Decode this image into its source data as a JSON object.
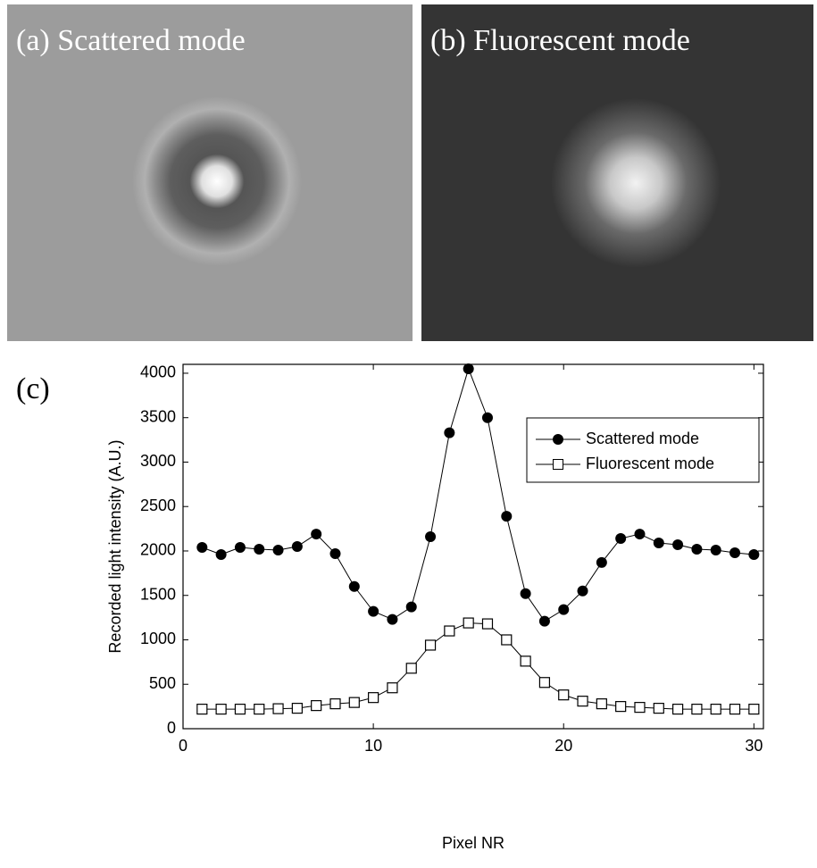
{
  "panels": [
    {
      "label": "(a) Scattered mode"
    },
    {
      "label": "(b) Fluorescent mode"
    }
  ],
  "chart_data": {
    "type": "line",
    "panel_label": "(c)",
    "x_label": "Pixel NR",
    "y_label": "Recorded light intensity (A.U.)",
    "x": [
      1,
      2,
      3,
      4,
      5,
      6,
      7,
      8,
      9,
      10,
      11,
      12,
      13,
      14,
      15,
      16,
      17,
      18,
      19,
      20,
      21,
      22,
      23,
      24,
      25,
      26,
      27,
      28,
      29,
      30
    ],
    "series": [
      {
        "name": "Scattered mode",
        "color": "#000000",
        "marker": "circle",
        "values": [
          2040,
          1960,
          2040,
          2020,
          2010,
          2050,
          2190,
          1970,
          1600,
          1320,
          1230,
          1370,
          2160,
          3330,
          4050,
          3500,
          2390,
          1520,
          1210,
          1340,
          1550,
          1870,
          2140,
          2190,
          2090,
          2070,
          2020,
          2010,
          1980,
          1960
        ]
      },
      {
        "name": "Fluorescent mode",
        "color": "#000000",
        "marker": "square",
        "values": [
          220,
          220,
          220,
          220,
          225,
          230,
          260,
          280,
          295,
          350,
          460,
          680,
          940,
          1100,
          1190,
          1180,
          1000,
          760,
          520,
          380,
          310,
          280,
          250,
          240,
          230,
          220,
          220,
          220,
          220,
          220
        ]
      }
    ],
    "xlim": [
      0,
      30.5
    ],
    "xticks": [
      0,
      10,
      20,
      30
    ],
    "ylim": [
      0,
      4100
    ],
    "yticks": [
      0,
      500,
      1000,
      1500,
      2000,
      2500,
      3000,
      3500,
      4000
    ],
    "grid": false,
    "legend": "upper right"
  }
}
